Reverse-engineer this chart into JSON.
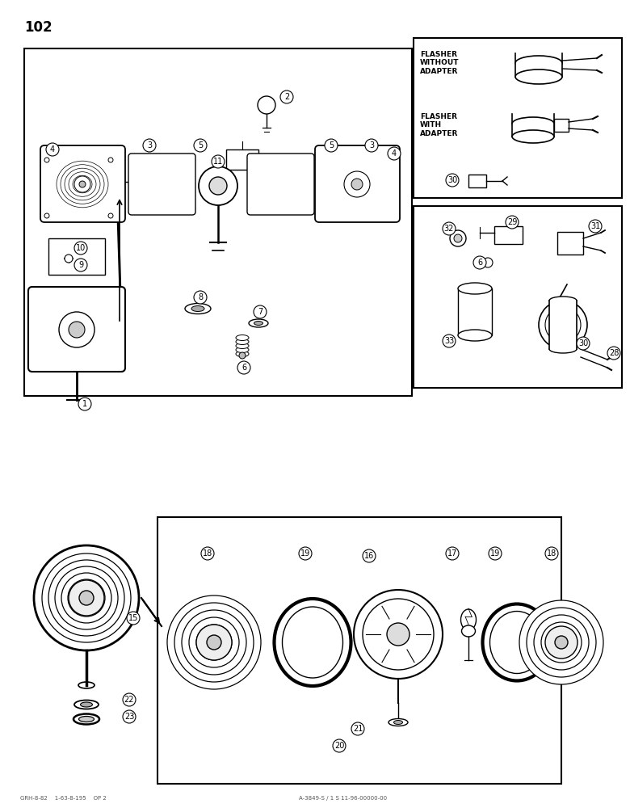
{
  "title_number": "102",
  "background_color": "#ffffff",
  "line_color": "#000000",
  "figsize": [
    7.8,
    10.0
  ],
  "dpi": 100,
  "footer_left": "GRH-8-82    1-63-8-195    OP 2",
  "footer_right": "A-3849-S / 1 S 11-96-00000-00",
  "flasher_without_adapter": "FLASHER\nWITHOUT\nADAPTER",
  "flasher_with_adapter": "FLASHER\nWITH\nADAPTER"
}
